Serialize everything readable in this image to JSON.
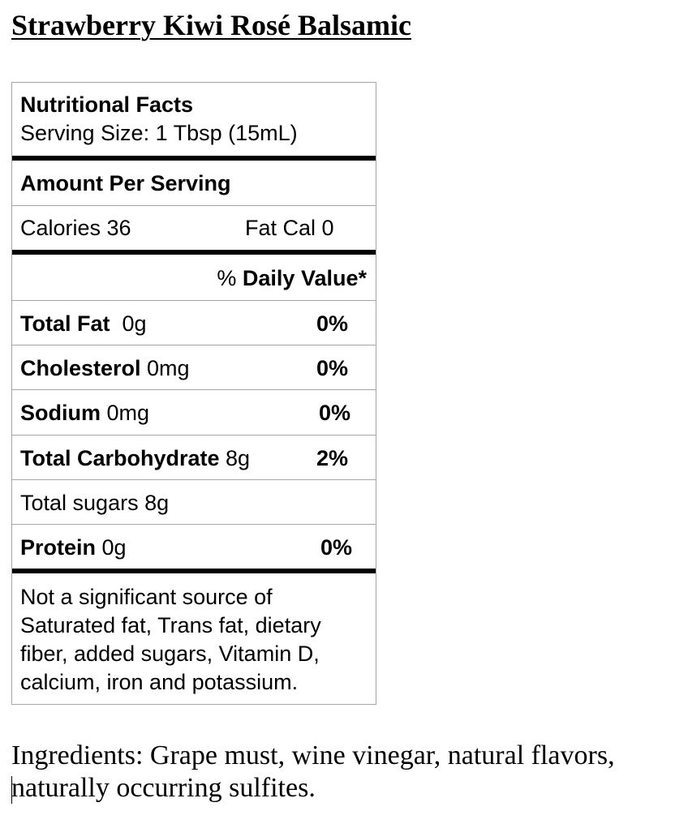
{
  "document": {
    "title": "Strawberry Kiwi Rosé Balsamic"
  },
  "nutrition": {
    "heading": "Nutritional Facts",
    "serving_size": "Serving Size: 1 Tbsp (15mL)",
    "amount_per_serving": "Amount Per Serving",
    "calories": "Calories 36",
    "fat_cal": "Fat Cal 0",
    "daily_value_prefix": "% ",
    "daily_value_label": "Daily Value*",
    "rows": [
      {
        "name": "Total Fat",
        "amount": "  0g",
        "pct": "0%"
      },
      {
        "name": "Cholesterol",
        "amount": " 0mg",
        "pct": "0%"
      },
      {
        "name": "Sodium",
        "amount": " 0mg",
        "pct": "0%"
      },
      {
        "name": "Total Carbohydrate",
        "amount": " 8g",
        "pct": "2%"
      },
      {
        "name": "",
        "amount": "Total sugars 8g",
        "pct": ""
      },
      {
        "name": "Protein",
        "amount": " 0g",
        "pct": "0%"
      }
    ],
    "footnote": "Not a significant source of Saturated fat, Trans fat, dietary fiber, added sugars, Vitamin D, calcium, iron and potassium."
  },
  "ingredients": {
    "text": "Ingredients: Grape must, wine vinegar, natural flavors, naturally occurring sulfites."
  }
}
